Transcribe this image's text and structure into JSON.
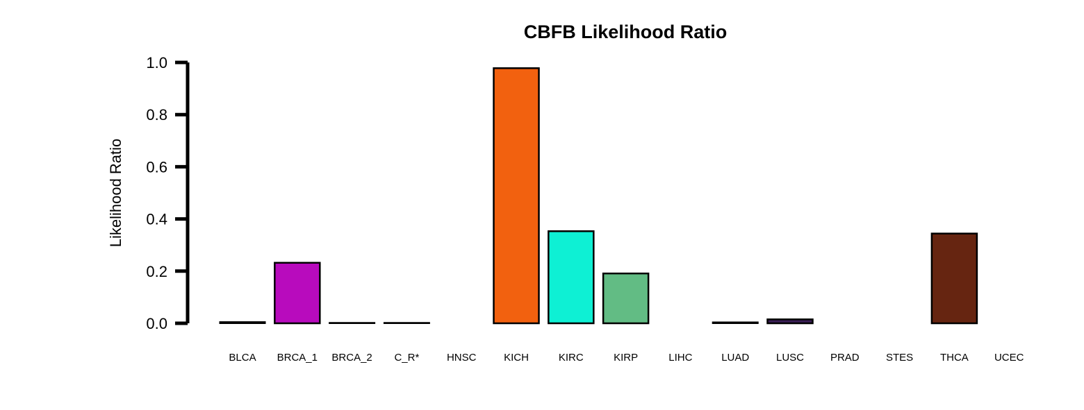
{
  "chart_data": {
    "type": "bar",
    "title": "CBFB Likelihood Ratio",
    "xlabel": "",
    "ylabel": "Likelihood Ratio",
    "ylim": [
      0,
      1.0
    ],
    "yticks": [
      "0.0",
      "0.2",
      "0.4",
      "0.6",
      "0.8",
      "1.0"
    ],
    "grid": false,
    "categories": [
      "BLCA",
      "BRCA_1",
      "BRCA_2",
      "C_R*",
      "HNSC",
      "KICH",
      "KIRC",
      "KIRP",
      "LIHC",
      "LUAD",
      "LUSC",
      "PRAD",
      "STES",
      "THCA",
      "UCEC"
    ],
    "values": [
      0.005,
      0.232,
      0.002,
      0.002,
      0.0,
      0.978,
      0.353,
      0.191,
      0.0,
      0.004,
      0.015,
      0.0,
      0.0,
      0.344,
      0.0
    ],
    "colors": [
      "#f2b800",
      "#b80bbd",
      "#f2b800",
      "#c0c0c0",
      "#2f9e42",
      "#f2610f",
      "#0ef0d4",
      "#62bc84",
      "#8b3dc4",
      "#1f3b8a",
      "#3b1f56",
      "#a0a0a0",
      "#d9d9d9",
      "#662511",
      "#f0f0f0"
    ]
  }
}
